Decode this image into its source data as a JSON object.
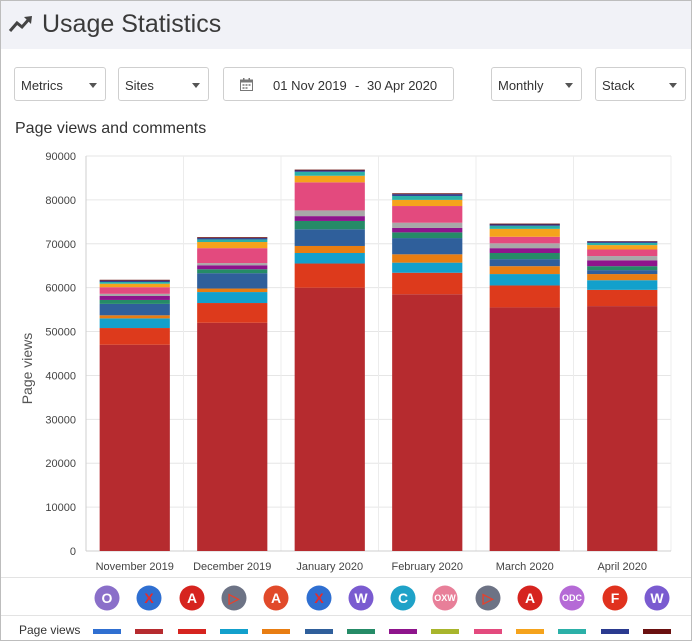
{
  "header": {
    "title": "Usage Statistics",
    "icon": "trending-up-icon"
  },
  "controls": {
    "metrics_label": "Metrics",
    "sites_label": "Sites",
    "date_from": "01 Nov 2019",
    "date_sep": "-",
    "date_to": "30 Apr 2020",
    "interval_label": "Monthly",
    "mode_label": "Stack"
  },
  "chart_data": {
    "type": "bar",
    "stacked": true,
    "title": "Page views and comments",
    "ylabel": "Page views",
    "xlabel": "",
    "ylim": [
      0,
      90000
    ],
    "yticks": [
      0,
      10000,
      20000,
      30000,
      40000,
      50000,
      60000,
      70000,
      80000,
      90000
    ],
    "grid": true,
    "categories": [
      "November 2019",
      "December 2019",
      "January 2020",
      "February 2020",
      "March 2020",
      "April 2020"
    ],
    "series": [
      {
        "color": "#b62b2f",
        "values": [
          47000,
          52000,
          60000,
          58500,
          55500,
          55800
        ]
      },
      {
        "color": "#dd3a1c",
        "values": [
          3800,
          4500,
          5500,
          4900,
          5000,
          3700
        ]
      },
      {
        "color": "#12a0cc",
        "values": [
          2200,
          2500,
          2400,
          2300,
          2600,
          2200
        ]
      },
      {
        "color": "#e87d12",
        "values": [
          700,
          800,
          1600,
          1900,
          1800,
          1400
        ]
      },
      {
        "color": "#2f5f9b",
        "values": [
          2600,
          3500,
          3800,
          3700,
          1600,
          900
        ]
      },
      {
        "color": "#258b67",
        "values": [
          900,
          900,
          1900,
          1300,
          1400,
          900
        ]
      },
      {
        "color": "#8e148c",
        "values": [
          900,
          900,
          1100,
          1000,
          1100,
          1300
        ]
      },
      {
        "color": "#a8a8a8",
        "values": [
          500,
          500,
          1300,
          1200,
          1100,
          1000
        ]
      },
      {
        "color": "#e34a7e",
        "values": [
          1500,
          3400,
          6400,
          3800,
          1500,
          1500
        ]
      },
      {
        "color": "#f5a31c",
        "values": [
          800,
          1400,
          1500,
          1400,
          1800,
          1000
        ]
      },
      {
        "color": "#2bb0a8",
        "values": [
          400,
          600,
          900,
          900,
          700,
          500
        ]
      },
      {
        "color": "#2a3a8f",
        "values": [
          300,
          300,
          300,
          400,
          300,
          300
        ]
      },
      {
        "color": "#6a1010",
        "values": [
          200,
          200,
          200,
          200,
          200,
          100
        ]
      }
    ]
  },
  "app_icons": [
    {
      "name": "o-app-icon",
      "text": "O",
      "bg": "#8a6fc9",
      "fg": "#ffffff",
      "shape": "circle"
    },
    {
      "name": "x-app-icon",
      "text": "X",
      "bg": "#2f6fd1",
      "fg": "#e52b2b",
      "shape": "circle"
    },
    {
      "name": "a-app-icon",
      "text": "A",
      "bg": "#d6241f",
      "fg": "#ffffff",
      "shape": "circle"
    },
    {
      "name": "arrow-app-icon",
      "text": "▷",
      "bg": "#6d7385",
      "fg": "#e8402b",
      "shape": "circle"
    },
    {
      "name": "a-outline-app-icon",
      "text": "A",
      "bg": "#e14a2a",
      "fg": "#ffffff",
      "shape": "circle"
    },
    {
      "name": "x-app-icon-2",
      "text": "X",
      "bg": "#2f6fd1",
      "fg": "#e52b2b",
      "shape": "circle"
    },
    {
      "name": "w-app-icon",
      "text": "W",
      "bg": "#7a5bd0",
      "fg": "#ffffff",
      "shape": "circle"
    },
    {
      "name": "c-app-icon",
      "text": "C",
      "bg": "#1fa2c8",
      "fg": "#ffffff",
      "shape": "circle"
    },
    {
      "name": "oxw-app-icon",
      "text": "OXW",
      "bg": "#e87f99",
      "fg": "#ffffff",
      "shape": "circle"
    },
    {
      "name": "arrow-app-icon-2",
      "text": "▷",
      "bg": "#6d7385",
      "fg": "#e8402b",
      "shape": "circle"
    },
    {
      "name": "a-app-icon-2",
      "text": "A",
      "bg": "#d6241f",
      "fg": "#ffffff",
      "shape": "circle"
    },
    {
      "name": "odc-app-icon",
      "text": "ODC",
      "bg": "#b56ad6",
      "fg": "#ffffff",
      "shape": "circle"
    },
    {
      "name": "f-app-icon",
      "text": "F",
      "bg": "#e0321e",
      "fg": "#ffffff",
      "shape": "circle"
    },
    {
      "name": "w-app-icon-2",
      "text": "W",
      "bg": "#7a5bd0",
      "fg": "#ffffff",
      "shape": "circle"
    }
  ],
  "legend": {
    "label": "Page views",
    "swatches": [
      "#2f6fd1",
      "#b62b2f",
      "#d6241f",
      "#12a0cc",
      "#e87d12",
      "#2f5f9b",
      "#258b67",
      "#8e148c",
      "#a8b52c",
      "#e34a7e",
      "#f5a31c",
      "#2bb0a8",
      "#2a3a8f",
      "#6a1010"
    ]
  }
}
